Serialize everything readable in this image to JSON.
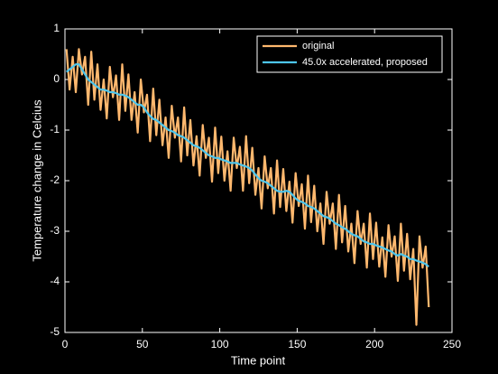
{
  "chart_data": {
    "type": "line",
    "xlabel": "Time point",
    "ylabel": "Temperature change in Celcius",
    "x": [
      1,
      3,
      5,
      7,
      9,
      11,
      13,
      15,
      17,
      19,
      21,
      23,
      25,
      27,
      29,
      31,
      33,
      35,
      37,
      39,
      41,
      43,
      45,
      47,
      49,
      51,
      53,
      55,
      57,
      59,
      61,
      63,
      65,
      67,
      69,
      71,
      73,
      75,
      77,
      79,
      81,
      83,
      85,
      87,
      89,
      91,
      93,
      95,
      97,
      99,
      101,
      103,
      105,
      107,
      109,
      111,
      113,
      115,
      117,
      119,
      121,
      123,
      125,
      127,
      129,
      131,
      133,
      135,
      137,
      139,
      141,
      143,
      145,
      147,
      149,
      151,
      153,
      155,
      157,
      159,
      161,
      163,
      165,
      167,
      169,
      171,
      173,
      175,
      177,
      179,
      181,
      183,
      185,
      187,
      189,
      191,
      193,
      195,
      197,
      199,
      201,
      203,
      205,
      207,
      209,
      211,
      213,
      215,
      217,
      219,
      221,
      223,
      225,
      227,
      229,
      231,
      233,
      235
    ],
    "series": [
      {
        "name": "original",
        "color": "#ffb86e",
        "values": [
          0.6,
          -0.2,
          0.45,
          -0.25,
          0.6,
          0.1,
          0.45,
          -0.5,
          0.55,
          -0.4,
          0.3,
          -0.6,
          0,
          -0.77,
          0.25,
          -0.35,
          0.08,
          -0.8,
          0.3,
          -0.62,
          0.1,
          -0.8,
          -0.25,
          -1.05,
          0,
          -0.65,
          -0.3,
          -1.22,
          -0.18,
          -1.1,
          -0.4,
          -1.3,
          -0.75,
          -1.55,
          -0.52,
          -1.15,
          -0.75,
          -1.62,
          -0.55,
          -1.5,
          -0.8,
          -1.7,
          -1.12,
          -1.9,
          -0.9,
          -1.55,
          -1.15,
          -2.02,
          -0.95,
          -1.85,
          -1.13,
          -2.0,
          -1.42,
          -2.2,
          -1.15,
          -1.75,
          -1.33,
          -2.2,
          -1.12,
          -2.05,
          -1.35,
          -2.28,
          -1.75,
          -2.55,
          -1.52,
          -2.15,
          -1.75,
          -2.65,
          -1.6,
          -2.52,
          -1.77,
          -2.6,
          -2.02,
          -2.83,
          -1.85,
          -2.5,
          -2.07,
          -2.95,
          -1.9,
          -2.82,
          -2.1,
          -3.0,
          -2.45,
          -3.25,
          -2.22,
          -2.85,
          -2.45,
          -3.35,
          -2.28,
          -3.22,
          -2.5,
          -3.4,
          -2.85,
          -3.63,
          -2.6,
          -3.25,
          -2.85,
          -3.72,
          -2.65,
          -3.55,
          -2.83,
          -3.7,
          -3.12,
          -3.9,
          -2.88,
          -3.5,
          -3.1,
          -3.98,
          -2.85,
          -3.78,
          -3.05,
          -3.95,
          -3.35,
          -4.85,
          -3.1,
          -3.72,
          -3.3,
          -4.5
        ]
      },
      {
        "name": "45.0x accelerated, proposed",
        "color": "#4dc6ec",
        "values": [
          0.15,
          0.2,
          0.25,
          0.3,
          0.3,
          0.2,
          0.1,
          0.0,
          -0.05,
          -0.1,
          -0.15,
          -0.2,
          -0.2,
          -0.22,
          -0.25,
          -0.25,
          -0.27,
          -0.3,
          -0.3,
          -0.32,
          -0.35,
          -0.4,
          -0.45,
          -0.5,
          -0.5,
          -0.55,
          -0.65,
          -0.72,
          -0.78,
          -0.8,
          -0.85,
          -0.9,
          -0.95,
          -1.0,
          -1.02,
          -1.05,
          -1.1,
          -1.12,
          -1.15,
          -1.2,
          -1.25,
          -1.3,
          -1.32,
          -1.35,
          -1.4,
          -1.45,
          -1.5,
          -1.52,
          -1.55,
          -1.55,
          -1.58,
          -1.6,
          -1.62,
          -1.65,
          -1.65,
          -1.65,
          -1.68,
          -1.7,
          -1.72,
          -1.75,
          -1.8,
          -1.88,
          -1.95,
          -2.0,
          -2.02,
          -2.05,
          -2.1,
          -2.15,
          -2.2,
          -2.22,
          -2.22,
          -2.2,
          -2.22,
          -2.28,
          -2.35,
          -2.4,
          -2.42,
          -2.45,
          -2.5,
          -2.52,
          -2.55,
          -2.6,
          -2.65,
          -2.7,
          -2.72,
          -2.75,
          -2.8,
          -2.85,
          -2.88,
          -2.92,
          -2.95,
          -3.0,
          -3.05,
          -3.08,
          -3.1,
          -3.15,
          -3.2,
          -3.22,
          -3.25,
          -3.25,
          -3.28,
          -3.3,
          -3.32,
          -3.35,
          -3.38,
          -3.4,
          -3.45,
          -3.48,
          -3.45,
          -3.48,
          -3.5,
          -3.55,
          -3.55,
          -3.58,
          -3.6,
          -3.62,
          -3.65,
          -3.7
        ]
      }
    ],
    "xlim": [
      0,
      250
    ],
    "xticks": [
      0,
      50,
      100,
      150,
      200,
      250
    ],
    "ylim": [
      -5,
      1
    ],
    "yticks": [
      -5,
      -4,
      -3,
      -2,
      -1,
      0,
      1
    ],
    "legend": "northeast"
  }
}
